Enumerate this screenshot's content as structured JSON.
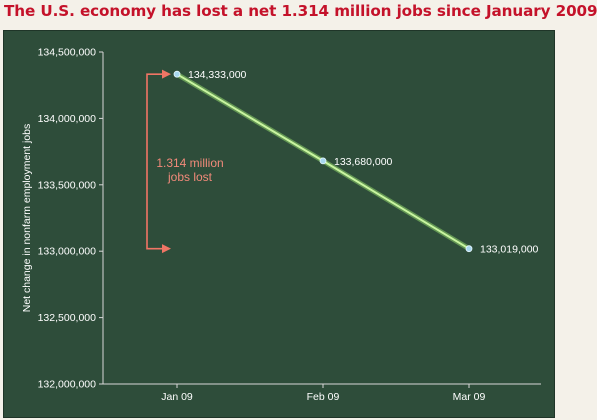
{
  "headline": "The U.S. economy has lost a net 1.314 million jobs since January 2009",
  "chart_data": {
    "type": "line",
    "title": "The U.S. economy has lost a net 1.314 million jobs since January 2009",
    "xlabel": "",
    "ylabel": "Net change in nonfarm employment jobs",
    "categories": [
      "Jan 09",
      "Feb 09",
      "Mar 09"
    ],
    "series": [
      {
        "values": [
          134333000,
          133680000,
          133019000
        ]
      }
    ],
    "data_labels": [
      "134,333,000",
      "133,680,000",
      "133,019,000"
    ],
    "ylim": [
      132000000,
      134500000
    ],
    "yticks": [
      132000000,
      132500000,
      133000000,
      133500000,
      134000000,
      134500000
    ],
    "ytick_labels": [
      "132,000,000",
      "132,500,000",
      "133,000,000",
      "133,500,000",
      "134,000,000",
      "134,500,000"
    ],
    "grid": false,
    "annotation": {
      "line1": "1.314 million",
      "line2": "jobs lost",
      "from": 134333000,
      "to": 133019000
    },
    "colors": {
      "background": "#2e4d3a",
      "line": "#c9f5a0",
      "point": "#a8d8ef",
      "annotation": "#f07565",
      "axis": "#d8d8d8",
      "headline": "#c4122a"
    }
  }
}
